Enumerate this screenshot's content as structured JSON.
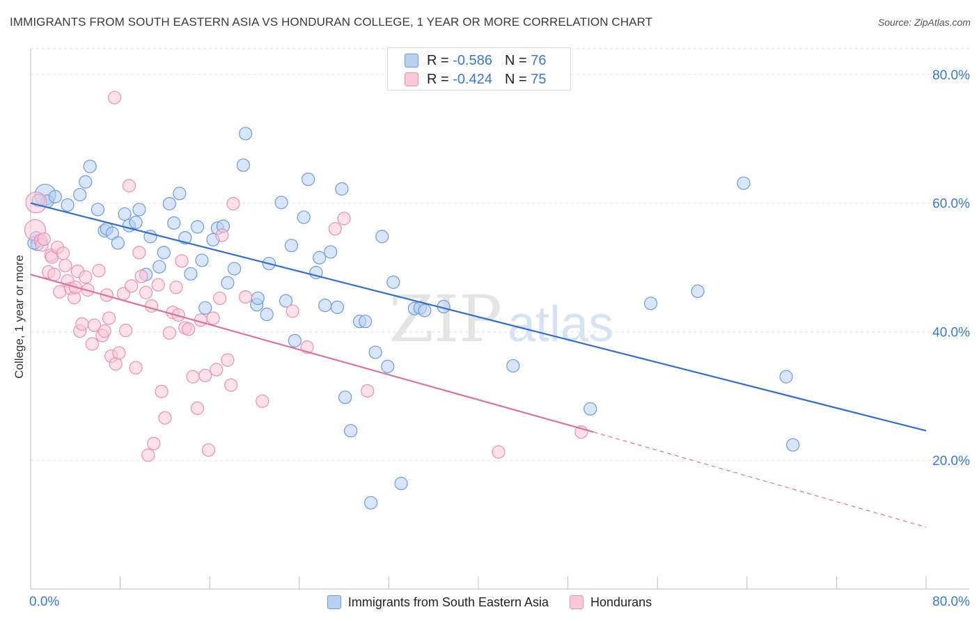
{
  "title": "IMMIGRANTS FROM SOUTH EASTERN ASIA VS HONDURAN COLLEGE, 1 YEAR OR MORE CORRELATION CHART",
  "source": "Source: ZipAtlas.com",
  "watermark": {
    "zip": "ZIP",
    "atlas": "atlas"
  },
  "legend_top": [
    {
      "r_label": "R =",
      "r_value": "-0.586",
      "n_label": "N =",
      "n_value": "76"
    },
    {
      "r_label": "R =",
      "r_value": "-0.424",
      "n_label": "N =",
      "n_value": "75"
    }
  ],
  "chart_data": {
    "type": "scatter",
    "title": "IMMIGRANTS FROM SOUTH EASTERN ASIA VS HONDURAN COLLEGE, 1 YEAR OR MORE CORRELATION CHART",
    "xlabel": "",
    "ylabel": "College, 1 year or more",
    "xlim": [
      0,
      80
    ],
    "ylim": [
      0,
      84
    ],
    "x_tick_labels": [
      "0.0%",
      "80.0%"
    ],
    "y_ticks": [
      20,
      40,
      60,
      80
    ],
    "y_tick_labels": [
      "20.0%",
      "40.0%",
      "60.0%",
      "80.0%"
    ],
    "grid": true,
    "legend_position": "bottom",
    "series": [
      {
        "name": "Immigrants from South Eastern Asia",
        "color": "#6a9be0",
        "fill": "#b9d0f3",
        "line_color": "#2f6fcf",
        "r": -0.586,
        "n": 76,
        "trend": {
          "x0": 0,
          "y0": 60.0,
          "x1": 80,
          "y1": 24.6
        },
        "points": [
          [
            1.3,
            61.3
          ],
          [
            1.5,
            60.3
          ],
          [
            0.5,
            54.6
          ],
          [
            0.6,
            53.6
          ],
          [
            2.2,
            61.0
          ],
          [
            3.3,
            59.7
          ],
          [
            4.4,
            61.3
          ],
          [
            4.9,
            63.3
          ],
          [
            5.3,
            65.7
          ],
          [
            6.0,
            59.0
          ],
          [
            6.6,
            55.7
          ],
          [
            6.8,
            56.0
          ],
          [
            7.3,
            55.3
          ],
          [
            7.8,
            53.8
          ],
          [
            8.4,
            58.3
          ],
          [
            8.8,
            56.5
          ],
          [
            9.4,
            57.0
          ],
          [
            9.7,
            59.0
          ],
          [
            10.3,
            48.9
          ],
          [
            10.7,
            54.8
          ],
          [
            11.5,
            50.1
          ],
          [
            11.9,
            52.3
          ],
          [
            12.4,
            59.9
          ],
          [
            12.8,
            56.9
          ],
          [
            13.3,
            61.5
          ],
          [
            13.8,
            54.6
          ],
          [
            14.3,
            49.0
          ],
          [
            14.9,
            56.3
          ],
          [
            15.3,
            51.1
          ],
          [
            15.6,
            43.7
          ],
          [
            16.3,
            54.3
          ],
          [
            16.7,
            56.1
          ],
          [
            17.2,
            56.4
          ],
          [
            17.6,
            47.6
          ],
          [
            18.2,
            49.8
          ],
          [
            19.0,
            65.9
          ],
          [
            19.2,
            70.8
          ],
          [
            20.2,
            44.2
          ],
          [
            20.3,
            45.2
          ],
          [
            21.1,
            42.7
          ],
          [
            21.3,
            50.6
          ],
          [
            22.4,
            60.1
          ],
          [
            22.8,
            44.8
          ],
          [
            23.3,
            53.4
          ],
          [
            23.6,
            38.6
          ],
          [
            24.4,
            57.8
          ],
          [
            24.8,
            63.7
          ],
          [
            25.5,
            49.2
          ],
          [
            25.8,
            51.5
          ],
          [
            26.3,
            44.1
          ],
          [
            26.8,
            52.4
          ],
          [
            27.4,
            43.8
          ],
          [
            27.8,
            62.2
          ],
          [
            28.1,
            29.8
          ],
          [
            28.6,
            24.6
          ],
          [
            29.4,
            41.6
          ],
          [
            29.9,
            41.6
          ],
          [
            30.4,
            13.4
          ],
          [
            30.8,
            36.8
          ],
          [
            31.4,
            54.8
          ],
          [
            31.9,
            34.6
          ],
          [
            32.4,
            47.7
          ],
          [
            33.1,
            16.4
          ],
          [
            34.3,
            43.6
          ],
          [
            34.8,
            43.7
          ],
          [
            35.2,
            43.3
          ],
          [
            36.9,
            43.9
          ],
          [
            43.1,
            34.7
          ],
          [
            50.0,
            28.0
          ],
          [
            55.4,
            44.4
          ],
          [
            59.6,
            46.3
          ],
          [
            63.7,
            63.1
          ],
          [
            67.5,
            33.0
          ],
          [
            68.1,
            22.4
          ],
          [
            0.3,
            53.8
          ],
          [
            0.7,
            60.4
          ]
        ]
      },
      {
        "name": "Hondurans",
        "color": "#eb8fae",
        "fill": "#f9c9d8",
        "line_color": "#e0709a",
        "r": -0.424,
        "n": 75,
        "trend": {
          "x0": 0,
          "y0": 48.9,
          "x1": 50.3,
          "y1": 24.4,
          "dash_x1": 80,
          "dash_y1": 9.6
        },
        "points": [
          [
            0.5,
            60.1
          ],
          [
            0.4,
            55.8
          ],
          [
            0.9,
            54.2
          ],
          [
            1.0,
            53.5
          ],
          [
            1.2,
            54.4
          ],
          [
            1.6,
            49.3
          ],
          [
            1.8,
            51.9
          ],
          [
            1.9,
            51.6
          ],
          [
            2.1,
            48.9
          ],
          [
            2.4,
            53.1
          ],
          [
            2.6,
            46.2
          ],
          [
            2.9,
            52.2
          ],
          [
            3.1,
            50.3
          ],
          [
            3.3,
            47.9
          ],
          [
            3.6,
            46.7
          ],
          [
            3.9,
            45.3
          ],
          [
            4.0,
            46.9
          ],
          [
            4.2,
            49.4
          ],
          [
            4.4,
            40.1
          ],
          [
            4.6,
            41.2
          ],
          [
            4.9,
            48.5
          ],
          [
            5.1,
            46.5
          ],
          [
            5.5,
            38.1
          ],
          [
            5.7,
            41.0
          ],
          [
            6.1,
            49.5
          ],
          [
            6.4,
            39.4
          ],
          [
            6.6,
            40.1
          ],
          [
            6.8,
            45.7
          ],
          [
            7.0,
            42.1
          ],
          [
            7.2,
            36.2
          ],
          [
            7.5,
            76.4
          ],
          [
            7.6,
            35.0
          ],
          [
            7.9,
            36.7
          ],
          [
            8.3,
            45.9
          ],
          [
            8.5,
            40.2
          ],
          [
            8.8,
            62.7
          ],
          [
            9.0,
            47.1
          ],
          [
            9.4,
            34.4
          ],
          [
            9.7,
            52.3
          ],
          [
            9.9,
            48.6
          ],
          [
            10.3,
            46.1
          ],
          [
            10.5,
            20.8
          ],
          [
            10.8,
            44.0
          ],
          [
            11.0,
            22.6
          ],
          [
            11.4,
            47.3
          ],
          [
            11.7,
            30.7
          ],
          [
            12.0,
            26.6
          ],
          [
            12.4,
            39.8
          ],
          [
            12.7,
            43.0
          ],
          [
            13.0,
            46.9
          ],
          [
            13.2,
            42.6
          ],
          [
            13.5,
            51.0
          ],
          [
            13.8,
            40.6
          ],
          [
            14.1,
            40.4
          ],
          [
            14.5,
            33.0
          ],
          [
            14.9,
            28.1
          ],
          [
            15.2,
            41.8
          ],
          [
            15.6,
            33.2
          ],
          [
            15.9,
            21.6
          ],
          [
            16.3,
            42.1
          ],
          [
            16.6,
            34.1
          ],
          [
            16.9,
            45.2
          ],
          [
            17.1,
            55.0
          ],
          [
            17.6,
            35.6
          ],
          [
            17.9,
            31.7
          ],
          [
            18.1,
            59.9
          ],
          [
            19.2,
            45.4
          ],
          [
            20.7,
            29.2
          ],
          [
            23.4,
            43.2
          ],
          [
            24.7,
            37.6
          ],
          [
            27.2,
            56.0
          ],
          [
            28.0,
            57.6
          ],
          [
            30.1,
            30.8
          ],
          [
            41.8,
            21.3
          ],
          [
            49.2,
            24.4
          ]
        ]
      }
    ]
  }
}
